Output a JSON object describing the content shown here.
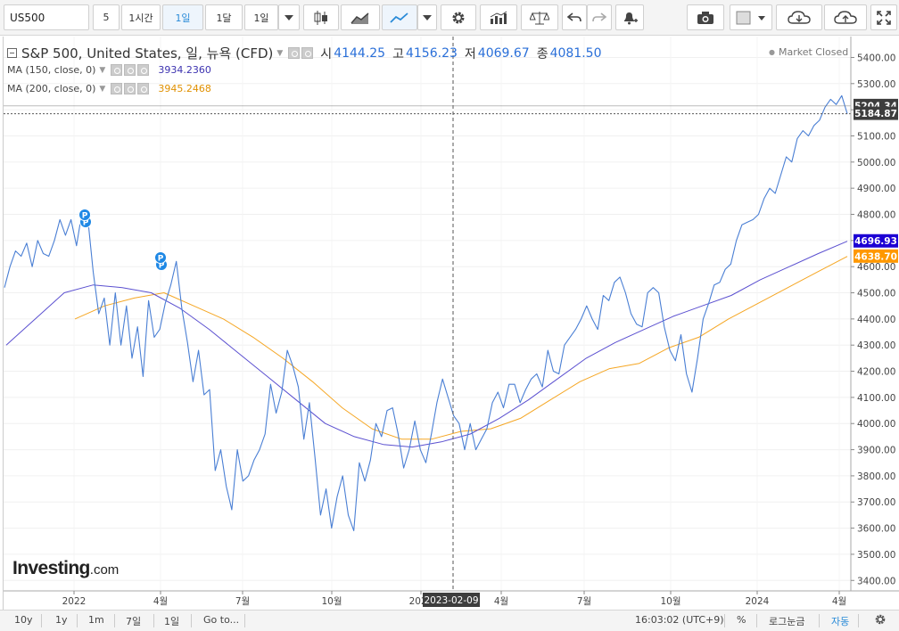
{
  "toolbar": {
    "symbol": "US500",
    "intervals": [
      "5",
      "1시간",
      "1일",
      "1달",
      "1일"
    ],
    "active_interval_index": 2,
    "icons": [
      "candlestick-icon",
      "area-chart-icon",
      "line-chart-icon",
      "dropdown-caret-icon",
      "gear-icon",
      "indicators-icon",
      "compare-scale-icon",
      "undo-icon",
      "redo-icon",
      "alert-bell-icon",
      "camera-icon",
      "color-swatch-icon",
      "cloud-download-icon",
      "cloud-upload-icon",
      "fullscreen-icon"
    ]
  },
  "legend": {
    "title": "S&P 500, United States, 일, 뉴욕 (CFD)",
    "open_label": "시",
    "open": "4144.25",
    "high_label": "고",
    "high": "4156.23",
    "low_label": "저",
    "low": "4069.67",
    "close_label": "종",
    "close": "4081.50",
    "ma150_label": "MA (150, close, 0)",
    "ma150_value": "3934.2360",
    "ma200_label": "MA (200, close, 0)",
    "ma200_value": "3945.2468",
    "market_status": "Market Closed"
  },
  "colors": {
    "price": "#4a7fd4",
    "ma150": "#5b50d0",
    "ma200": "#f5a623",
    "price_tag": "#3d3d3d",
    "ma150_tag": "#1c00d4",
    "ma200_tag": "#ff9800",
    "marker": "#1e88e5"
  },
  "logo": {
    "main": "Investing",
    "suffix": ".com"
  },
  "bottombar": {
    "ranges": [
      "10y",
      "1y",
      "1m",
      "7일",
      "1일",
      "Go to..."
    ],
    "time": "16:03:02 (UTC+9)",
    "percent": "%",
    "log": "로그눈금",
    "auto": "자동"
  },
  "chart_data": {
    "type": "line",
    "ylim": [
      3360,
      5480
    ],
    "y_ticks": [
      3400,
      3500,
      3600,
      3700,
      3800,
      3900,
      4000,
      4100,
      4200,
      4300,
      4400,
      4500,
      4600,
      4700,
      4800,
      4900,
      5000,
      5100,
      5200,
      5300,
      5400
    ],
    "x_labels": [
      "2022",
      "4월",
      "7월",
      "10월",
      "2023",
      "4월",
      "7월",
      "10월",
      "2024",
      "4월"
    ],
    "crosshair_date": "2023-02-09",
    "price_tags": {
      "price": "5184.87",
      "ma150": "4696.93",
      "ma200": "4638.70",
      "hidden": "5204.34"
    },
    "series": [
      {
        "name": "S&P 500",
        "values": [
          4520,
          4600,
          4660,
          4640,
          4690,
          4600,
          4700,
          4650,
          4640,
          4700,
          4780,
          4720,
          4780,
          4680,
          4810,
          4790,
          4580,
          4420,
          4480,
          4300,
          4500,
          4300,
          4450,
          4250,
          4370,
          4180,
          4470,
          4330,
          4360,
          4460,
          4530,
          4620,
          4440,
          4310,
          4160,
          4280,
          4110,
          4130,
          3820,
          3900,
          3760,
          3670,
          3900,
          3780,
          3800,
          3860,
          3900,
          3960,
          4150,
          4040,
          4120,
          4280,
          4220,
          4140,
          3940,
          4080,
          3870,
          3650,
          3750,
          3600,
          3720,
          3800,
          3650,
          3590,
          3850,
          3780,
          3860,
          4000,
          3950,
          4050,
          4060,
          3960,
          3830,
          3900,
          4010,
          3900,
          3850,
          3960,
          4080,
          4170,
          4100,
          4030,
          4000,
          3900,
          4000,
          3900,
          3940,
          3980,
          4080,
          4120,
          4060,
          4150,
          4150,
          4080,
          4130,
          4170,
          4190,
          4140,
          4280,
          4200,
          4190,
          4300,
          4330,
          4360,
          4400,
          4450,
          4400,
          4360,
          4490,
          4470,
          4540,
          4560,
          4500,
          4420,
          4380,
          4370,
          4500,
          4520,
          4500,
          4370,
          4280,
          4240,
          4340,
          4190,
          4120,
          4250,
          4400,
          4460,
          4530,
          4540,
          4590,
          4610,
          4700,
          4760,
          4770,
          4780,
          4800,
          4860,
          4900,
          4880,
          4950,
          5020,
          5000,
          5090,
          5120,
          5100,
          5140,
          5160,
          5210,
          5240,
          5220,
          5254,
          5185
        ]
      },
      {
        "name": "MA (150, close, 0)",
        "values": [
          4300,
          4400,
          4500,
          4530,
          4520,
          4500,
          4440,
          4360,
          4270,
          4180,
          4090,
          4000,
          3950,
          3920,
          3910,
          3930,
          3960,
          4020,
          4090,
          4170,
          4250,
          4310,
          4360,
          4410,
          4450,
          4490,
          4550,
          4600,
          4650,
          4697
        ]
      },
      {
        "name": "MA (200, close, 0)",
        "values": [
          4400,
          4450,
          4480,
          4500,
          4450,
          4400,
          4330,
          4250,
          4160,
          4060,
          3980,
          3940,
          3940,
          3970,
          3980,
          4020,
          4090,
          4160,
          4210,
          4230,
          4290,
          4330,
          4400,
          4460,
          4520,
          4580,
          4639
        ]
      }
    ]
  }
}
